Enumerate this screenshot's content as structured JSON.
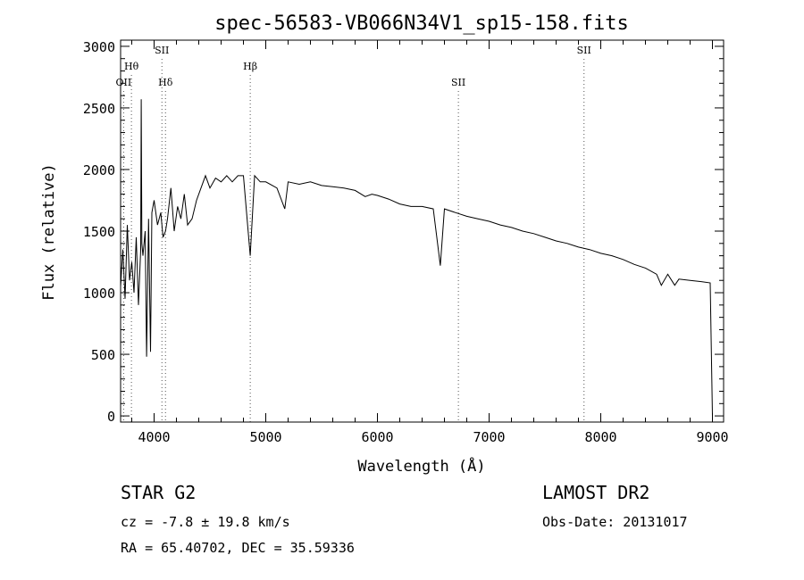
{
  "chart_data": {
    "type": "line",
    "title": "spec-56583-VB066N34V1_sp15-158.fits",
    "xlabel": "Wavelength (Å)",
    "ylabel": "Flux (relative)",
    "xlim": [
      3700,
      9100
    ],
    "ylim": [
      -50,
      3050
    ],
    "x_ticks": [
      4000,
      5000,
      6000,
      7000,
      8000,
      9000
    ],
    "y_ticks": [
      0,
      500,
      1000,
      1500,
      2000,
      2500,
      3000
    ],
    "grid": false,
    "series": [
      {
        "x": [
          3700,
          3720,
          3740,
          3760,
          3780,
          3800,
          3820,
          3840,
          3860,
          3880,
          3885,
          3890,
          3900,
          3920,
          3933,
          3950,
          3968,
          3980,
          4000,
          4030,
          4060,
          4080,
          4102,
          4120,
          4150,
          4180,
          4210,
          4240,
          4270,
          4300,
          4340,
          4380,
          4420,
          4460,
          4500,
          4550,
          4600,
          4650,
          4700,
          4750,
          4800,
          4861,
          4900,
          4950,
          5000,
          5100,
          5170,
          5200,
          5300,
          5400,
          5500,
          5600,
          5700,
          5800,
          5890,
          5950,
          6000,
          6100,
          6200,
          6300,
          6400,
          6500,
          6563,
          6600,
          6700,
          6800,
          6900,
          7000,
          7100,
          7200,
          7300,
          7400,
          7500,
          7600,
          7700,
          7800,
          7900,
          8000,
          8100,
          8200,
          8300,
          8400,
          8500,
          8542,
          8600,
          8662,
          8700,
          8800,
          8900,
          8980,
          9000
        ],
        "y": [
          1050,
          1350,
          950,
          1550,
          1100,
          1250,
          1000,
          1450,
          900,
          1350,
          2570,
          1400,
          1300,
          1500,
          480,
          1600,
          520,
          1650,
          1750,
          1550,
          1650,
          1450,
          1500,
          1600,
          1850,
          1500,
          1700,
          1600,
          1800,
          1550,
          1600,
          1750,
          1850,
          1950,
          1850,
          1930,
          1900,
          1950,
          1900,
          1950,
          1950,
          1300,
          1950,
          1900,
          1900,
          1850,
          1680,
          1900,
          1880,
          1900,
          1870,
          1860,
          1850,
          1830,
          1780,
          1800,
          1790,
          1760,
          1720,
          1700,
          1700,
          1680,
          1220,
          1680,
          1650,
          1620,
          1600,
          1580,
          1550,
          1530,
          1500,
          1480,
          1450,
          1420,
          1400,
          1370,
          1350,
          1320,
          1300,
          1270,
          1230,
          1200,
          1150,
          1060,
          1150,
          1060,
          1110,
          1100,
          1090,
          1080,
          0
        ]
      }
    ],
    "line_markers": [
      {
        "label": "OII",
        "x": 3727,
        "row": 2
      },
      {
        "label": "Hθ",
        "x": 3797,
        "row": 1
      },
      {
        "label": "SII",
        "x": 4070,
        "row": 0
      },
      {
        "label": "Hδ",
        "x": 4102,
        "row": 2
      },
      {
        "label": "Hβ",
        "x": 4861,
        "row": 1
      },
      {
        "label": "SII",
        "x": 6725,
        "row": 2
      },
      {
        "label": "SII",
        "x": 7850,
        "row": 0
      }
    ]
  },
  "info": {
    "object_class": "STAR    G2",
    "survey": "LAMOST DR2",
    "redshift": "cz = -7.8 ± 19.8 km/s",
    "obs_date": "Obs-Date: 20131017",
    "coords": "RA =  65.40702, DEC =  35.59336"
  }
}
